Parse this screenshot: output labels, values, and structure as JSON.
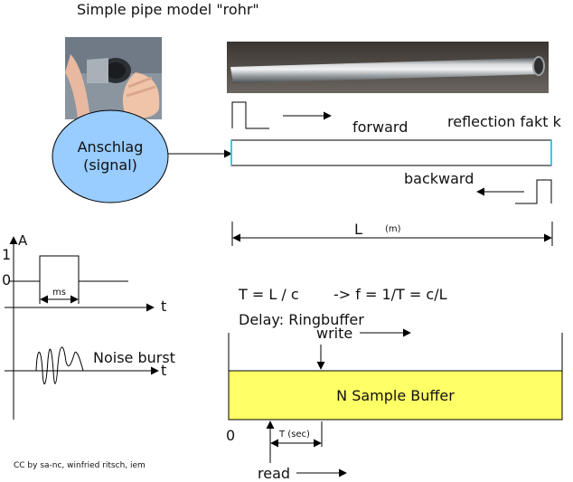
{
  "title": "Simple pipe model \"rohr\"",
  "signal_ellipse": {
    "line1": "Anschlag",
    "line2": "(signal)",
    "fill": "#99ccff"
  },
  "pipe": {
    "forward": "forward",
    "backward": "backward",
    "reflection": "reflection fakt k",
    "length": "L",
    "length_unit": "(m)"
  },
  "pulse_plot": {
    "y_axis": "A",
    "y_one": "1",
    "y_zero": "0",
    "width": "ms",
    "x_axis": "t"
  },
  "noise_plot": {
    "label": "Noise burst",
    "x_axis": "t"
  },
  "formulas": {
    "period": "T = L / c",
    "frequency": "-> f = 1/T = c/L",
    "delay": "Delay: Ringbuffer"
  },
  "buffer": {
    "label": "N Sample Buffer",
    "write": "write",
    "read": "read",
    "origin": "0",
    "delay": "T (sec)",
    "fill": "#ffff66"
  },
  "credit": "CC by sa-nc, winfried ritsch, iem"
}
